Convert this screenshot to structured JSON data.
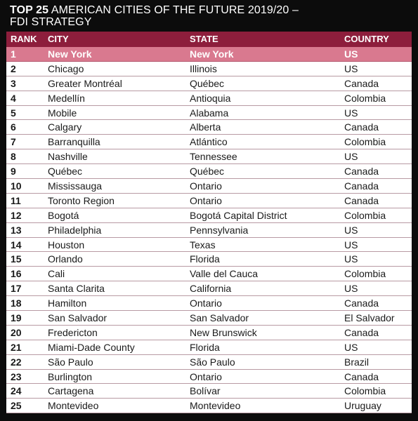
{
  "title": {
    "bold": "TOP 25",
    "rest": " AMERICAN CITIES OF THE FUTURE 2019/20 –",
    "line2": "FDI STRATEGY"
  },
  "headers": {
    "rank": "RANK",
    "city": "CITY",
    "state": "STATE",
    "country": "COUNTRY"
  },
  "colors": {
    "header_bg": "#8d1e3c",
    "highlight_bg": "#d9798f",
    "row_bg": "#ffffff"
  },
  "rows": [
    {
      "rank": "1",
      "city": "New York",
      "state": "New York",
      "country": "US"
    },
    {
      "rank": "2",
      "city": "Chicago",
      "state": "Illinois",
      "country": "US"
    },
    {
      "rank": "3",
      "city": "Greater Montréal",
      "state": "Québec",
      "country": "Canada"
    },
    {
      "rank": "4",
      "city": "Medellín",
      "state": "Antioquia",
      "country": "Colombia"
    },
    {
      "rank": "5",
      "city": "Mobile",
      "state": "Alabama",
      "country": "US"
    },
    {
      "rank": "6",
      "city": "Calgary",
      "state": "Alberta",
      "country": "Canada"
    },
    {
      "rank": "7",
      "city": "Barranquilla",
      "state": "Atlántico",
      "country": "Colombia"
    },
    {
      "rank": "8",
      "city": "Nashville",
      "state": "Tennessee",
      "country": "US"
    },
    {
      "rank": "9",
      "city": "Québec",
      "state": "Québec",
      "country": "Canada"
    },
    {
      "rank": "10",
      "city": "Mississauga",
      "state": "Ontario",
      "country": "Canada"
    },
    {
      "rank": "11",
      "city": "Toronto Region",
      "state": "Ontario",
      "country": "Canada"
    },
    {
      "rank": "12",
      "city": "Bogotá",
      "state": "Bogotá Capital District",
      "country": "Colombia"
    },
    {
      "rank": "13",
      "city": "Philadelphia",
      "state": "Pennsylvania",
      "country": "US"
    },
    {
      "rank": "14",
      "city": "Houston",
      "state": "Texas",
      "country": "US"
    },
    {
      "rank": "15",
      "city": "Orlando",
      "state": "Florida",
      "country": "US"
    },
    {
      "rank": "16",
      "city": "Cali",
      "state": "Valle del Cauca",
      "country": "Colombia"
    },
    {
      "rank": "17",
      "city": "Santa Clarita",
      "state": "California",
      "country": "US"
    },
    {
      "rank": "18",
      "city": "Hamilton",
      "state": "Ontario",
      "country": "Canada"
    },
    {
      "rank": "19",
      "city": "San Salvador",
      "state": "San Salvador",
      "country": "El Salvador"
    },
    {
      "rank": "20",
      "city": "Fredericton",
      "state": "New Brunswick",
      "country": "Canada"
    },
    {
      "rank": "21",
      "city": "Miami-Dade County",
      "state": "Florida",
      "country": "US"
    },
    {
      "rank": "22",
      "city": "São Paulo",
      "state": "São Paulo",
      "country": "Brazil"
    },
    {
      "rank": "23",
      "city": "Burlington",
      "state": "Ontario",
      "country": "Canada"
    },
    {
      "rank": "24",
      "city": "Cartagena",
      "state": "Bolívar",
      "country": "Colombia"
    },
    {
      "rank": "25",
      "city": "Montevideo",
      "state": "Montevideo",
      "country": "Uruguay"
    }
  ]
}
